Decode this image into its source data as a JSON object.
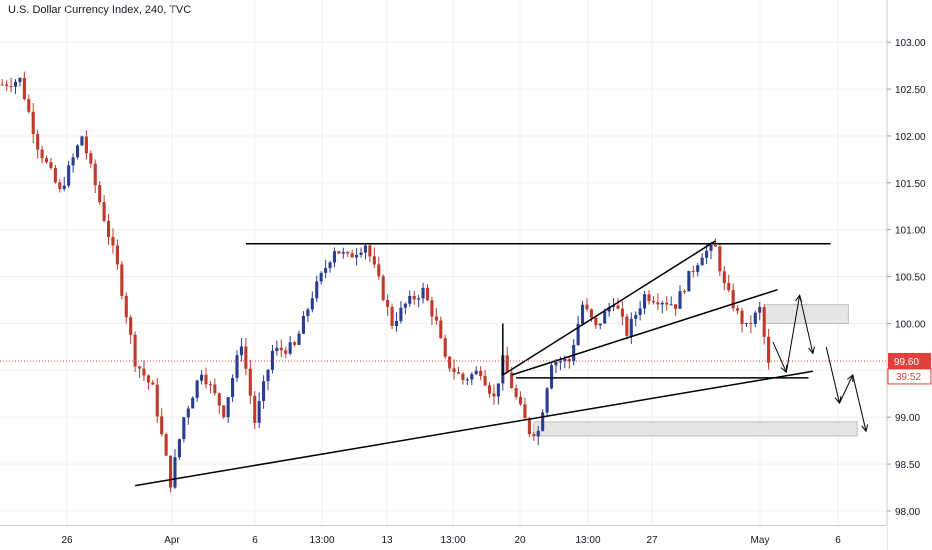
{
  "header": {
    "title": "U.S. Dollar Currency Index, 240, TVC"
  },
  "colors": {
    "up": "#2b3d8f",
    "down": "#c0392b",
    "grid": "#eef0f3",
    "axis_text": "#131722",
    "price_line": "#e0413b",
    "zone_fill": "#e6e6e6",
    "zone_stroke": "#b0b0b0",
    "drawing": "#000000"
  },
  "chart_data": {
    "type": "candlestick",
    "title": "U.S. Dollar Currency Index, 240, TVC",
    "ylim": [
      97.85,
      103.45
    ],
    "y_ticks": [
      "103.00",
      "102.50",
      "102.00",
      "101.50",
      "101.00",
      "100.50",
      "100.00",
      "99.50",
      "99.00",
      "98.50",
      "98.00"
    ],
    "x_ticks": [
      "26",
      "Apr",
      "6",
      "13:00",
      "13",
      "13:00",
      "20",
      "13:00",
      "27",
      "May",
      "6"
    ],
    "last_price": {
      "value": "99.60",
      "countdown": "39:52"
    },
    "grid": true,
    "series": [
      {
        "name": "U.S. Dollar Currency Index",
        "waypoints": [
          [
            0,
            102.55
          ],
          [
            4,
            102.6
          ],
          [
            8,
            101.9
          ],
          [
            13,
            101.4
          ],
          [
            18,
            102.0
          ],
          [
            22,
            101.3
          ],
          [
            26,
            100.6
          ],
          [
            30,
            99.6
          ],
          [
            34,
            99.3
          ],
          [
            38,
            98.3
          ],
          [
            41,
            99.0
          ],
          [
            45,
            99.5
          ],
          [
            50,
            99.05
          ],
          [
            54,
            99.8
          ],
          [
            57,
            98.95
          ],
          [
            61,
            99.7
          ],
          [
            66,
            99.75
          ],
          [
            70,
            100.3
          ],
          [
            75,
            100.8
          ],
          [
            78,
            100.7
          ],
          [
            82,
            100.85
          ],
          [
            85,
            100.45
          ],
          [
            88,
            100.0
          ],
          [
            91,
            100.2
          ],
          [
            95,
            100.35
          ],
          [
            98,
            100.0
          ],
          [
            100,
            99.6
          ],
          [
            104,
            99.4
          ],
          [
            108,
            99.5
          ],
          [
            111,
            99.2
          ],
          [
            113,
            99.6
          ],
          [
            116,
            99.2
          ],
          [
            119,
            98.85
          ],
          [
            121,
            98.85
          ],
          [
            124,
            99.6
          ],
          [
            128,
            99.6
          ],
          [
            131,
            100.2
          ],
          [
            134,
            99.95
          ],
          [
            138,
            100.25
          ],
          [
            141,
            99.9
          ],
          [
            145,
            100.3
          ],
          [
            149,
            100.25
          ],
          [
            152,
            100.2
          ],
          [
            155,
            100.5
          ],
          [
            158,
            100.75
          ],
          [
            161,
            100.8
          ],
          [
            163,
            100.4
          ],
          [
            166,
            100.1
          ],
          [
            168,
            99.95
          ],
          [
            171,
            100.15
          ],
          [
            173,
            99.55
          ]
        ]
      }
    ],
    "zones": [
      {
        "from_x": 172,
        "to_x": 191,
        "low": 100.0,
        "high": 100.2
      },
      {
        "from_x": 120,
        "to_x": 193,
        "low": 98.8,
        "high": 98.95
      }
    ],
    "trendlines": [
      {
        "points": [
          [
            30,
            98.27
          ],
          [
            183,
            99.49
          ]
        ]
      },
      {
        "points": [
          [
            55,
            100.85
          ],
          [
            187,
            100.85
          ]
        ]
      },
      {
        "points": [
          [
            113,
            99.45
          ],
          [
            161,
            100.88
          ]
        ]
      },
      {
        "points": [
          [
            115,
            99.45
          ],
          [
            175,
            100.36
          ]
        ]
      },
      {
        "points": [
          [
            116,
            99.42
          ],
          [
            182,
            99.42
          ]
        ]
      },
      {
        "points": [
          [
            113,
            99.45
          ],
          [
            113,
            100.0
          ]
        ]
      }
    ],
    "projection_arrows": [
      {
        "points": [
          [
            174,
            99.8
          ],
          [
            177,
            99.48
          ],
          [
            180,
            100.3
          ],
          [
            183,
            99.68
          ]
        ]
      },
      {
        "points": [
          [
            186,
            99.75
          ],
          [
            189,
            99.15
          ],
          [
            192,
            99.45
          ],
          [
            195,
            98.85
          ]
        ]
      }
    ]
  }
}
